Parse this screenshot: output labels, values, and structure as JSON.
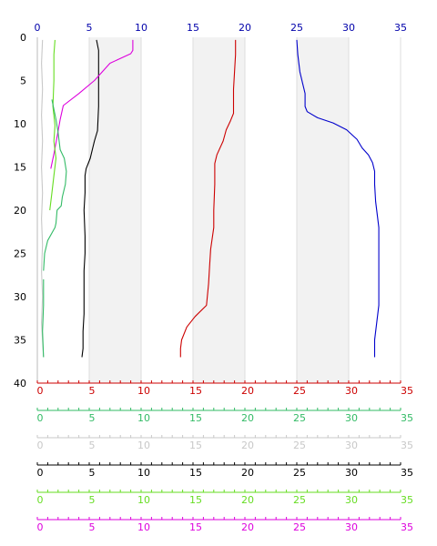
{
  "chart_data": {
    "type": "line",
    "title": "",
    "xlabel": "",
    "ylabel": "",
    "ylim": [
      0,
      40
    ],
    "y_inverted": true,
    "y_ticks": [
      "0",
      "5",
      "10",
      "15",
      "20",
      "25",
      "30",
      "35",
      "40"
    ],
    "shaded_bands": [
      [
        5,
        10
      ],
      [
        15,
        20
      ],
      [
        25,
        30
      ]
    ],
    "grid": "vertical",
    "axes": [
      {
        "id": "top",
        "position": "top",
        "color": "#0000aa",
        "range": [
          0,
          35
        ],
        "ticks": [
          "0",
          "5",
          "10",
          "15",
          "20",
          "25",
          "30",
          "35"
        ]
      },
      {
        "id": "red",
        "position": "bottom",
        "color": "#cc0000",
        "range": [
          0,
          35
        ],
        "ticks": [
          "0",
          "5",
          "10",
          "15",
          "20",
          "25",
          "30",
          "35"
        ]
      },
      {
        "id": "seagreen",
        "position": "bottom",
        "color": "#33bb66",
        "range": [
          0,
          35
        ],
        "ticks": [
          "0",
          "5",
          "10",
          "15",
          "20",
          "25",
          "30",
          "35"
        ]
      },
      {
        "id": "lightgray",
        "position": "bottom",
        "color": "#c8c8c8",
        "range": [
          0,
          35
        ],
        "ticks": [
          "0",
          "5",
          "10",
          "15",
          "20",
          "25",
          "30",
          "35"
        ]
      },
      {
        "id": "black",
        "position": "bottom",
        "color": "#000000",
        "range": [
          0,
          35
        ],
        "ticks": [
          "0",
          "5",
          "10",
          "15",
          "20",
          "25",
          "30",
          "35"
        ]
      },
      {
        "id": "lime",
        "position": "bottom",
        "color": "#66dd22",
        "range": [
          0,
          35
        ],
        "ticks": [
          "0",
          "5",
          "10",
          "15",
          "20",
          "25",
          "30",
          "35"
        ]
      },
      {
        "id": "magenta",
        "position": "bottom",
        "color": "#dd00dd",
        "range": [
          0,
          35
        ],
        "ticks": [
          "0",
          "5",
          "10",
          "15",
          "20",
          "25",
          "30",
          "35"
        ]
      }
    ],
    "series": [
      {
        "axis": "top",
        "color": "#0000cc",
        "points": [
          [
            25.0,
            0.3
          ],
          [
            25.1,
            2
          ],
          [
            25.3,
            4
          ],
          [
            25.6,
            5.5
          ],
          [
            25.8,
            6.5
          ],
          [
            25.8,
            8
          ],
          [
            26.0,
            8.6
          ],
          [
            27.0,
            9.3
          ],
          [
            28.5,
            9.9
          ],
          [
            29.8,
            10.7
          ],
          [
            30.8,
            11.8
          ],
          [
            31.3,
            12.8
          ],
          [
            31.9,
            13.6
          ],
          [
            32.3,
            14.5
          ],
          [
            32.5,
            15.5
          ],
          [
            32.5,
            17
          ],
          [
            32.6,
            19
          ],
          [
            32.9,
            22
          ],
          [
            32.9,
            25
          ],
          [
            32.9,
            28
          ],
          [
            32.9,
            31
          ],
          [
            32.7,
            33
          ],
          [
            32.5,
            35
          ],
          [
            32.5,
            37
          ]
        ]
      },
      {
        "axis": "top",
        "color": "#cc0000",
        "points": [
          [
            19.1,
            0.3
          ],
          [
            19.1,
            2
          ],
          [
            19.0,
            4
          ],
          [
            18.9,
            6
          ],
          [
            18.9,
            8.8
          ],
          [
            18.6,
            9.7
          ],
          [
            18.2,
            10.7
          ],
          [
            17.9,
            12
          ],
          [
            17.3,
            13.6
          ],
          [
            17.1,
            14.6
          ],
          [
            17.1,
            17
          ],
          [
            17.0,
            20
          ],
          [
            17.0,
            22
          ],
          [
            16.7,
            24.5
          ],
          [
            16.6,
            26.5
          ],
          [
            16.5,
            28.5
          ],
          [
            16.3,
            31
          ],
          [
            15.2,
            32.3
          ],
          [
            14.4,
            33.5
          ],
          [
            13.9,
            35
          ],
          [
            13.8,
            36
          ],
          [
            13.8,
            37
          ]
        ]
      },
      {
        "axis": "top",
        "color": "#000000",
        "points": [
          [
            5.7,
            0.3
          ],
          [
            5.9,
            1.5
          ],
          [
            5.9,
            5
          ],
          [
            5.9,
            8
          ],
          [
            5.8,
            10.8
          ],
          [
            5.5,
            12
          ],
          [
            5.1,
            14
          ],
          [
            4.7,
            15.2
          ],
          [
            4.6,
            16
          ],
          [
            4.6,
            18
          ],
          [
            4.5,
            20
          ],
          [
            4.6,
            23
          ],
          [
            4.6,
            25
          ],
          [
            4.5,
            27
          ],
          [
            4.5,
            29
          ],
          [
            4.5,
            32
          ],
          [
            4.4,
            34
          ],
          [
            4.4,
            36
          ],
          [
            4.3,
            37
          ]
        ]
      },
      {
        "axis": "top",
        "color": "#dd00dd",
        "points": [
          [
            9.2,
            0.3
          ],
          [
            9.2,
            1.5
          ],
          [
            9.0,
            1.9
          ],
          [
            7.0,
            3
          ],
          [
            5.5,
            5
          ],
          [
            4.0,
            6.5
          ],
          [
            2.5,
            7.9
          ],
          [
            2.2,
            9.5
          ],
          [
            1.9,
            11.5
          ],
          [
            1.6,
            13.5
          ],
          [
            1.3,
            15.2
          ]
        ]
      },
      {
        "axis": "top",
        "color": "#66dd22",
        "points": [
          [
            1.7,
            0.3
          ],
          [
            1.6,
            2
          ],
          [
            1.6,
            5
          ],
          [
            1.5,
            8
          ],
          [
            1.7,
            10.2
          ],
          [
            1.6,
            12
          ],
          [
            1.8,
            14
          ],
          [
            1.6,
            16
          ],
          [
            1.4,
            18
          ],
          [
            1.2,
            20
          ]
        ]
      },
      {
        "axis": "top",
        "color": "#33bb66",
        "points": [
          [
            1.4,
            7.2
          ],
          [
            1.8,
            9.5
          ],
          [
            2.0,
            11
          ],
          [
            2.2,
            13
          ],
          [
            2.6,
            14
          ],
          [
            2.8,
            15.5
          ],
          [
            2.7,
            17
          ],
          [
            2.4,
            18.5
          ],
          [
            2.3,
            19.5
          ],
          [
            1.9,
            20
          ],
          [
            1.8,
            21.5
          ],
          [
            1.7,
            22
          ],
          [
            1.0,
            23.5
          ],
          [
            0.7,
            25
          ],
          [
            0.6,
            27
          ]
        ]
      },
      {
        "axis": "top",
        "color": "#c8c8c8",
        "points": [
          [
            0.5,
            0.3
          ],
          [
            0.4,
            3
          ],
          [
            0.5,
            6
          ],
          [
            0.4,
            9
          ],
          [
            0.5,
            12
          ],
          [
            0.4,
            15
          ],
          [
            0.5,
            18
          ],
          [
            0.4,
            21
          ],
          [
            0.5,
            24
          ],
          [
            0.4,
            27
          ],
          [
            0.5,
            30
          ],
          [
            0.4,
            33
          ],
          [
            0.6,
            37
          ]
        ]
      },
      {
        "axis": "top",
        "color": "#33bb66",
        "points": [
          [
            0.6,
            28
          ],
          [
            0.6,
            31
          ],
          [
            0.5,
            34
          ],
          [
            0.6,
            37
          ]
        ]
      }
    ]
  }
}
